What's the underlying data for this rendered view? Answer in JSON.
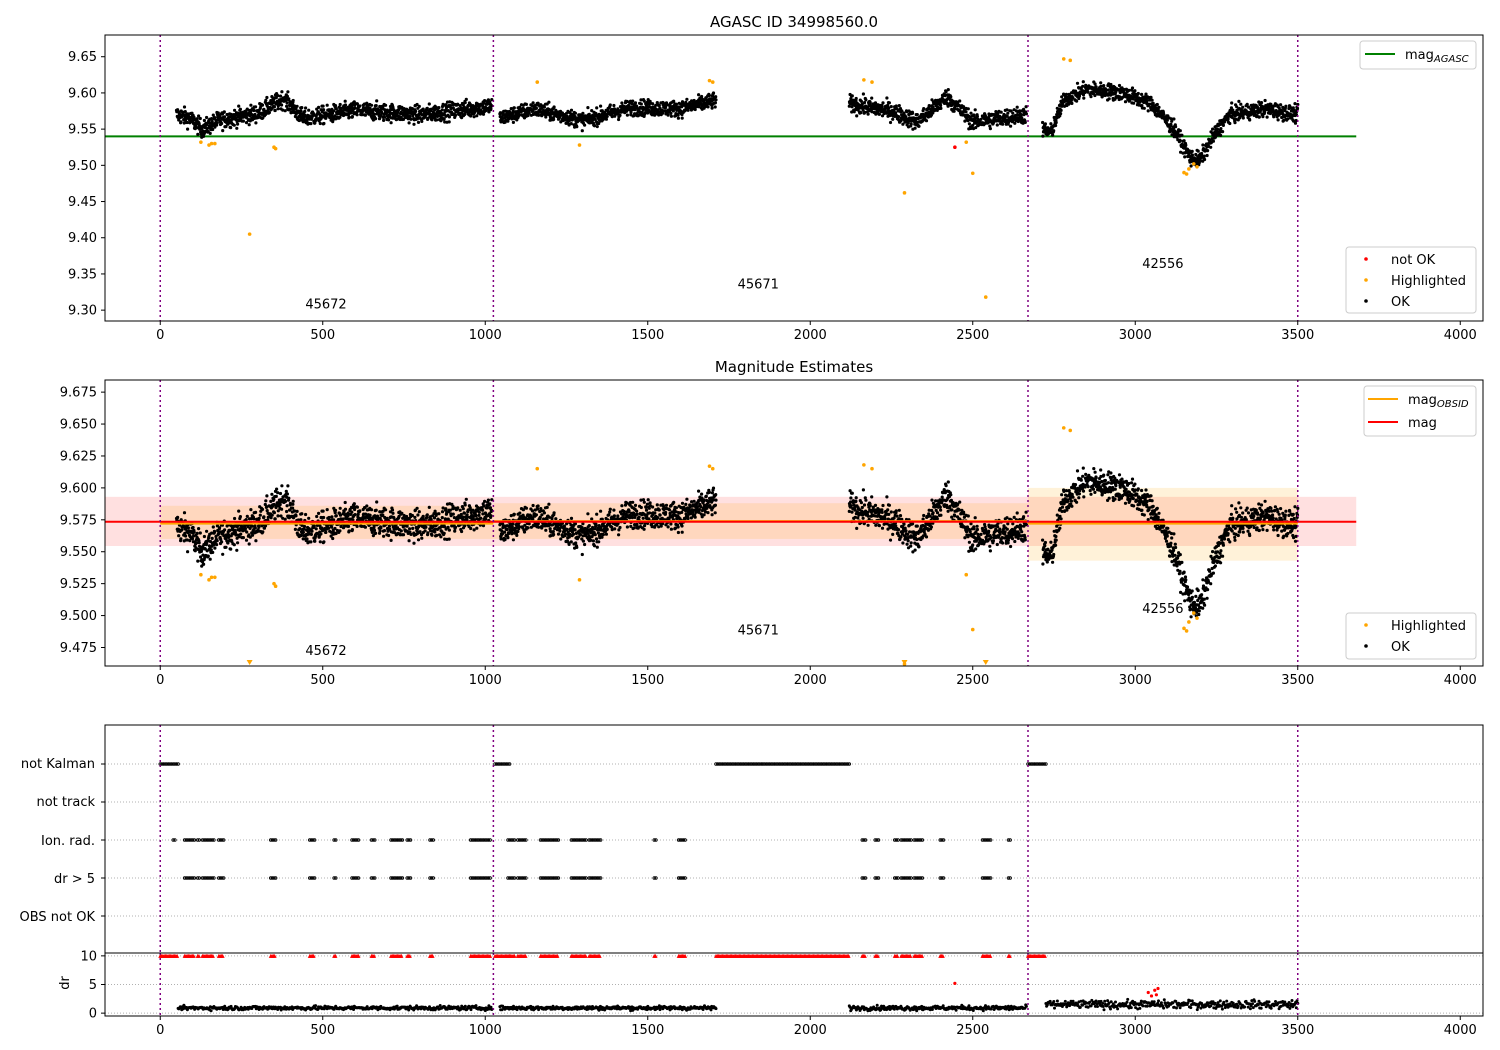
{
  "chart_data": [
    {
      "type": "scatter",
      "title": "AGASC ID 34998560.0",
      "xlim": [
        -170,
        4070
      ],
      "ylim": [
        9.285,
        9.68
      ],
      "xticks": [
        0,
        500,
        1000,
        1500,
        2000,
        2500,
        3000,
        3500,
        4000
      ],
      "yticks": [
        9.3,
        9.35,
        9.4,
        9.45,
        9.5,
        9.55,
        9.6,
        9.65
      ],
      "obs_boundaries": [
        0,
        1025,
        2670,
        3500
      ],
      "obs_labels": [
        {
          "text": "45672",
          "x": 510,
          "y": 9.302
        },
        {
          "text": "45671",
          "x": 1840,
          "y": 9.33
        },
        {
          "text": "42556",
          "x": 3085,
          "y": 9.358
        }
      ],
      "legend_lines": [
        {
          "label": "mag",
          "sub": "AGASC",
          "color": "#008000"
        }
      ],
      "legend_points": [
        {
          "label": "not OK",
          "color": "#ff0000"
        },
        {
          "label": "Highlighted",
          "color": "#ffa500"
        },
        {
          "label": "OK",
          "color": "#000000"
        }
      ],
      "line_mag_agasc": {
        "value": 9.54,
        "x": [
          -170,
          3680
        ],
        "color": "#008000"
      },
      "segments": [
        {
          "x0": 50,
          "x1": 1020,
          "base": 9.575,
          "noise": 0.011,
          "knots": [
            [
              50,
              9.57
            ],
            [
              90,
              9.565
            ],
            [
              130,
              9.55
            ],
            [
              180,
              9.562
            ],
            [
              300,
              9.572
            ],
            [
              380,
              9.592
            ],
            [
              440,
              9.565
            ],
            [
              600,
              9.576
            ],
            [
              800,
              9.57
            ],
            [
              1020,
              9.582
            ]
          ]
        },
        {
          "x0": 1045,
          "x1": 1710,
          "base": 9.575,
          "noise": 0.01,
          "knots": [
            [
              1045,
              9.565
            ],
            [
              1150,
              9.578
            ],
            [
              1300,
              9.562
            ],
            [
              1450,
              9.58
            ],
            [
              1600,
              9.578
            ],
            [
              1710,
              9.59
            ]
          ]
        },
        {
          "x0": 2120,
          "x1": 2665,
          "base": 9.575,
          "noise": 0.011,
          "knots": [
            [
              2120,
              9.585
            ],
            [
              2250,
              9.575
            ],
            [
              2330,
              9.56
            ],
            [
              2420,
              9.595
            ],
            [
              2500,
              9.56
            ],
            [
              2665,
              9.57
            ]
          ]
        },
        {
          "x0": 2715,
          "x1": 3500,
          "base": 9.575,
          "noise": 0.01,
          "knots": [
            [
              2715,
              9.55
            ],
            [
              2740,
              9.545
            ],
            [
              2780,
              9.59
            ],
            [
              2850,
              9.605
            ],
            [
              2960,
              9.6
            ],
            [
              3050,
              9.585
            ],
            [
              3120,
              9.55
            ],
            [
              3170,
              9.51
            ],
            [
              3200,
              9.508
            ],
            [
              3240,
              9.54
            ],
            [
              3290,
              9.57
            ],
            [
              3400,
              9.578
            ],
            [
              3500,
              9.57
            ]
          ]
        }
      ],
      "highlighted": [
        [
          125,
          9.532
        ],
        [
          150,
          9.528
        ],
        [
          158,
          9.53
        ],
        [
          168,
          9.53
        ],
        [
          350,
          9.525
        ],
        [
          355,
          9.523
        ],
        [
          275,
          9.405
        ],
        [
          1160,
          9.615
        ],
        [
          1290,
          9.528
        ],
        [
          1690,
          9.617
        ],
        [
          1700,
          9.615
        ],
        [
          2165,
          9.618
        ],
        [
          2190,
          9.615
        ],
        [
          2290,
          9.462
        ],
        [
          2480,
          9.532
        ],
        [
          2500,
          9.489
        ],
        [
          2540,
          9.318
        ],
        [
          2780,
          9.647
        ],
        [
          2800,
          9.645
        ],
        [
          3150,
          9.49
        ],
        [
          3158,
          9.488
        ],
        [
          3165,
          9.495
        ],
        [
          3180,
          9.502
        ],
        [
          3190,
          9.498
        ]
      ],
      "not_ok": [
        [
          2445,
          9.525
        ]
      ]
    },
    {
      "type": "scatter",
      "title": "Magnitude Estimates",
      "xlim": [
        -170,
        4070
      ],
      "ylim": [
        9.4605,
        9.6845
      ],
      "xticks": [
        0,
        500,
        1000,
        1500,
        2000,
        2500,
        3000,
        3500,
        4000
      ],
      "yticks": [
        9.475,
        9.5,
        9.525,
        9.55,
        9.575,
        9.6,
        9.625,
        9.65,
        9.675
      ],
      "obs_boundaries": [
        0,
        1025,
        2670,
        3500
      ],
      "obs_labels": [
        {
          "text": "45672",
          "x": 510,
          "y": 9.469
        },
        {
          "text": "45671",
          "x": 1840,
          "y": 9.485
        },
        {
          "text": "42556",
          "x": 3085,
          "y": 9.502
        }
      ],
      "legend_lines": [
        {
          "label": "mag",
          "sub": "OBSID",
          "color": "#ffa500"
        },
        {
          "label": "mag",
          "sub": "",
          "color": "#ff0000"
        }
      ],
      "legend_points": [
        {
          "label": "Highlighted",
          "color": "#ffa500"
        },
        {
          "label": "OK",
          "color": "#000000"
        }
      ],
      "mag": {
        "value": 9.5735,
        "band": [
          9.5545,
          9.593
        ],
        "x": [
          -170,
          3680
        ],
        "color": "#ff0000"
      },
      "mag_obsid": [
        {
          "x0": 0,
          "x1": 1025,
          "value": 9.572,
          "band": [
            9.56,
            9.586
          ]
        },
        {
          "x0": 1025,
          "x1": 2670,
          "value": 9.574,
          "band": [
            9.56,
            9.588
          ]
        },
        {
          "x0": 2670,
          "x1": 3500,
          "value": 9.572,
          "band": [
            9.543,
            9.6
          ]
        }
      ],
      "offscale_markers": [
        275,
        2290,
        2540
      ]
    },
    {
      "type": "scatter",
      "categories": [
        "not Kalman",
        "not track",
        "Ion. rad.",
        "dr > 5",
        "OBS not OK"
      ],
      "flag_ranges": {
        "not Kalman": [
          [
            0,
            55
          ],
          [
            1030,
            1075
          ],
          [
            1710,
            2120
          ],
          [
            2670,
            2725
          ]
        ],
        "not track": [],
        "Ion. rad.": [
          [
            40,
            45
          ],
          [
            75,
            105
          ],
          [
            115,
            120
          ],
          [
            130,
            165
          ],
          [
            180,
            195
          ],
          [
            340,
            355
          ],
          [
            460,
            475
          ],
          [
            535,
            540
          ],
          [
            590,
            610
          ],
          [
            650,
            660
          ],
          [
            710,
            745
          ],
          [
            760,
            770
          ],
          [
            830,
            840
          ],
          [
            955,
            1015
          ],
          [
            1070,
            1090
          ],
          [
            1100,
            1125
          ],
          [
            1170,
            1225
          ],
          [
            1265,
            1310
          ],
          [
            1320,
            1355
          ],
          [
            1520,
            1525
          ],
          [
            1595,
            1615
          ],
          [
            2160,
            2170
          ],
          [
            2200,
            2210
          ],
          [
            2260,
            2270
          ],
          [
            2280,
            2310
          ],
          [
            2320,
            2345
          ],
          [
            2400,
            2410
          ],
          [
            2530,
            2555
          ],
          [
            2610,
            2615
          ]
        ],
        "dr > 5": [
          [
            75,
            105
          ],
          [
            115,
            120
          ],
          [
            130,
            165
          ],
          [
            180,
            195
          ],
          [
            340,
            355
          ],
          [
            460,
            475
          ],
          [
            535,
            540
          ],
          [
            590,
            610
          ],
          [
            650,
            660
          ],
          [
            710,
            745
          ],
          [
            760,
            770
          ],
          [
            830,
            840
          ],
          [
            955,
            1015
          ],
          [
            1070,
            1090
          ],
          [
            1100,
            1125
          ],
          [
            1170,
            1225
          ],
          [
            1265,
            1310
          ],
          [
            1320,
            1355
          ],
          [
            1520,
            1525
          ],
          [
            1595,
            1615
          ],
          [
            2160,
            2170
          ],
          [
            2200,
            2210
          ],
          [
            2260,
            2270
          ],
          [
            2280,
            2310
          ],
          [
            2320,
            2345
          ],
          [
            2400,
            2410
          ],
          [
            2530,
            2555
          ],
          [
            2610,
            2615
          ]
        ],
        "OBS not OK": []
      },
      "obs_boundaries": [
        0,
        1025,
        2670,
        3500
      ]
    },
    {
      "type": "scatter",
      "ylabel": "dr",
      "xlim": [
        -170,
        4070
      ],
      "ylim": [
        -0.5,
        10.5
      ],
      "xticks": [
        0,
        500,
        1000,
        1500,
        2000,
        2500,
        3000,
        3500,
        4000
      ],
      "yticks": [
        0,
        5,
        10
      ],
      "obs_boundaries": [
        0,
        1025,
        2670,
        3500
      ],
      "clipped_value": 10,
      "clipped_ranges": [
        [
          0,
          55
        ],
        [
          340,
          355
        ],
        [
          460,
          475
        ],
        [
          535,
          540
        ],
        [
          590,
          610
        ],
        [
          650,
          660
        ],
        [
          710,
          745
        ],
        [
          760,
          770
        ],
        [
          830,
          840
        ],
        [
          955,
          1015
        ],
        [
          1030,
          1075
        ],
        [
          1100,
          1125
        ],
        [
          1170,
          1225
        ],
        [
          1265,
          1310
        ],
        [
          1320,
          1355
        ],
        [
          1520,
          1525
        ],
        [
          1595,
          1615
        ],
        [
          1710,
          2120
        ],
        [
          2160,
          2170
        ],
        [
          2200,
          2210
        ],
        [
          2260,
          2270
        ],
        [
          2280,
          2310
        ],
        [
          2320,
          2345
        ],
        [
          2400,
          2410
        ],
        [
          2530,
          2555
        ],
        [
          2610,
          2615
        ],
        [
          2670,
          2725
        ],
        [
          75,
          105
        ],
        [
          115,
          120
        ],
        [
          130,
          165
        ],
        [
          180,
          195
        ],
        [
          1070,
          1090
        ]
      ],
      "dr_segments": [
        {
          "x0": 55,
          "x1": 1020,
          "mean": 0.9,
          "spread": 0.4
        },
        {
          "x0": 1045,
          "x1": 1710,
          "mean": 0.9,
          "spread": 0.4
        },
        {
          "x0": 2120,
          "x1": 2665,
          "mean": 0.9,
          "spread": 0.45
        },
        {
          "x0": 2725,
          "x1": 3500,
          "mean": 1.5,
          "spread": 0.8
        }
      ],
      "dr_red": [
        [
          2445,
          5.2
        ],
        [
          3040,
          3.6
        ],
        [
          3050,
          3.0
        ],
        [
          3060,
          4.0
        ],
        [
          3065,
          3.2
        ],
        [
          3070,
          4.3
        ]
      ]
    }
  ]
}
